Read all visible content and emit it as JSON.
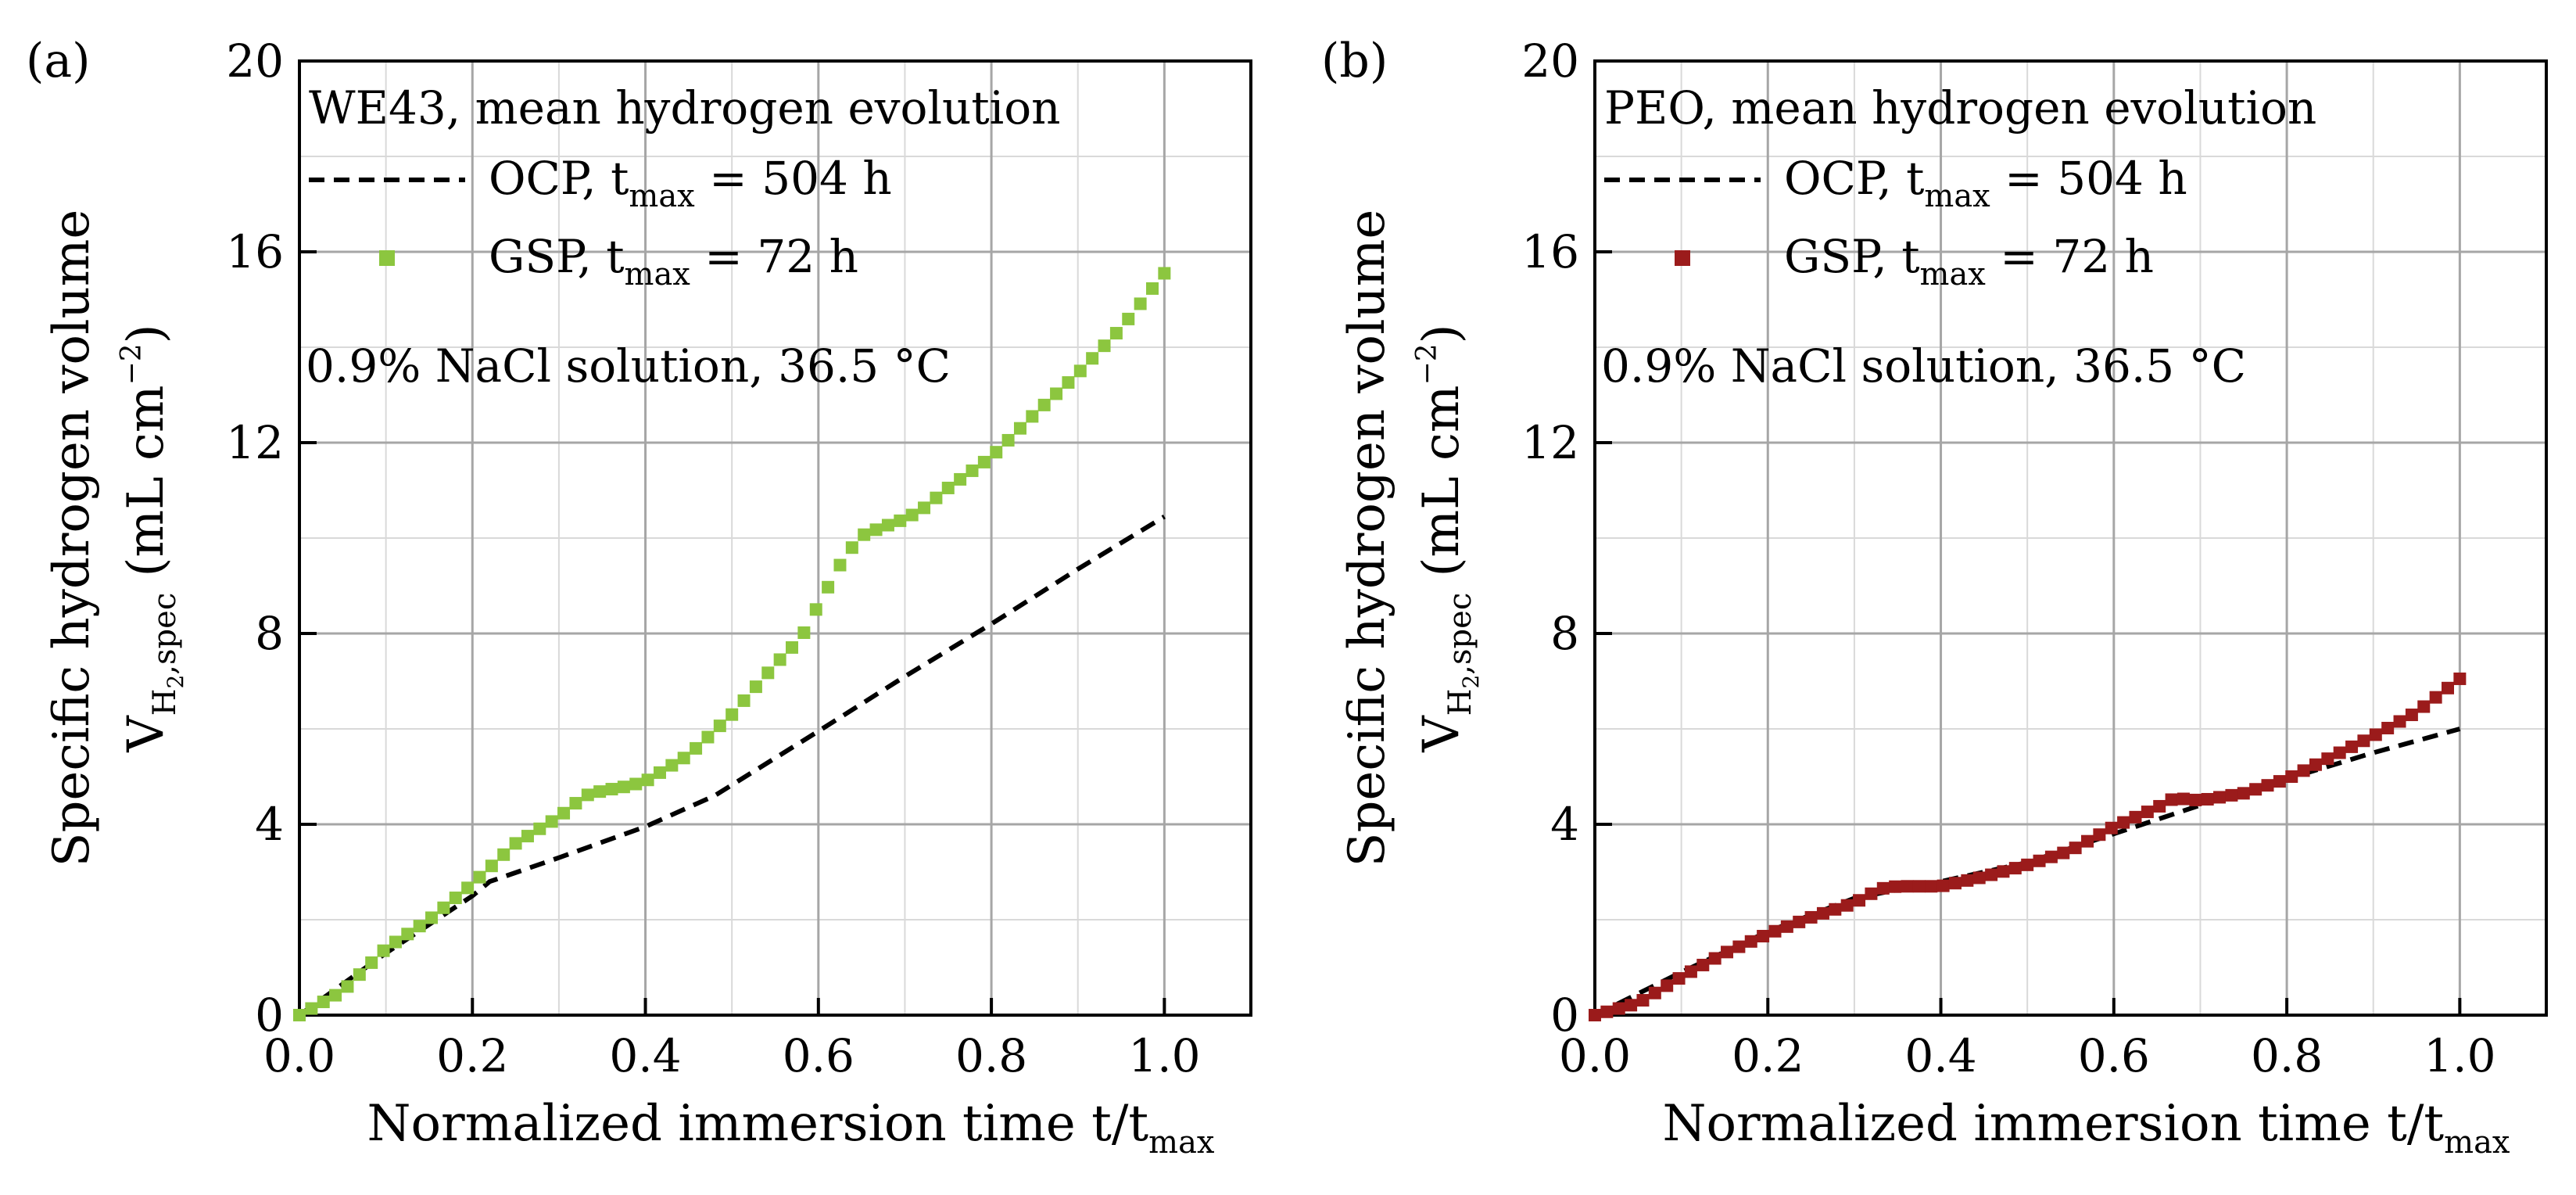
{
  "chart_data": [
    {
      "type": "line",
      "panel_label": "(a)",
      "legend_title": "WE43, mean hydrogen evolution",
      "legend": [
        {
          "name": "OCP",
          "style": "dashed-line",
          "color": "#000000",
          "label_parts": {
            "main": "OCP, t",
            "sub": "max",
            "rest": " = 504 h"
          }
        },
        {
          "name": "GSP",
          "style": "square-markers",
          "color": "#8cc63f",
          "label_parts": {
            "main": "GSP, t",
            "sub": "max",
            "rest": " = 72 h"
          }
        }
      ],
      "note": "0.9% NaCl solution, 36.5 °C",
      "xlabel": {
        "main": "Normalized immersion time t/t",
        "sub": "max"
      },
      "ylabel_outer": "Specific hydrogen volume",
      "ylabel_inner": {
        "V": "V",
        "sub": "H",
        "sub2": "2",
        "sub3": ",spec",
        "units": " (mL cm",
        "sup": "−2",
        "close": ")"
      },
      "xlim": [
        0,
        1.1
      ],
      "ylim": [
        0,
        20
      ],
      "xticks": [
        0.0,
        0.2,
        0.4,
        0.6,
        0.8,
        1.0
      ],
      "xtick_labels": [
        "0.0",
        "0.2",
        "0.4",
        "0.6",
        "0.8",
        "1.0"
      ],
      "yticks": [
        0,
        4,
        8,
        12,
        16,
        20
      ],
      "ytick_labels": [
        "0",
        "4",
        "8",
        "12",
        "16",
        "20"
      ],
      "grid": true,
      "series": [
        {
          "name": "OCP",
          "x": [
            0,
            0.1,
            0.2,
            0.22,
            0.3,
            0.4,
            0.48,
            0.6,
            0.7,
            0.8,
            0.9,
            1.0
          ],
          "y": [
            0,
            1.3,
            2.5,
            2.8,
            3.3,
            3.95,
            4.6,
            5.95,
            7.1,
            8.2,
            9.35,
            10.45
          ]
        },
        {
          "name": "GSP",
          "x": [
            0,
            0.05,
            0.1,
            0.15,
            0.2,
            0.25,
            0.3,
            0.33,
            0.35,
            0.38,
            0.4,
            0.45,
            0.5,
            0.55,
            0.58,
            0.6,
            0.63,
            0.65,
            0.67,
            0.7,
            0.72,
            0.75,
            0.8,
            0.85,
            0.9,
            0.95,
            1.0
          ],
          "y": [
            0,
            0.5,
            1.4,
            2.0,
            2.75,
            3.6,
            4.15,
            4.6,
            4.7,
            4.8,
            4.9,
            5.45,
            6.3,
            7.35,
            7.9,
            8.6,
            9.6,
            10.05,
            10.2,
            10.4,
            10.6,
            11.05,
            11.7,
            12.6,
            13.45,
            14.4,
            15.55
          ]
        }
      ]
    },
    {
      "type": "line",
      "panel_label": "(b)",
      "legend_title": "PEO, mean hydrogen evolution",
      "legend": [
        {
          "name": "OCP",
          "style": "dashed-line",
          "color": "#000000",
          "label_parts": {
            "main": "OCP, t",
            "sub": "max",
            "rest": " = 504 h"
          }
        },
        {
          "name": "GSP",
          "style": "square-markers",
          "color": "#9b1b1b",
          "label_parts": {
            "main": "GSP, t",
            "sub": "max",
            "rest": " = 72 h"
          }
        }
      ],
      "note": "0.9% NaCl solution, 36.5 °C",
      "xlabel": {
        "main": "Normalized immersion time t/t",
        "sub": "max"
      },
      "ylabel_outer": "Specific hydrogen volume",
      "ylabel_inner": {
        "V": "V",
        "sub": "H",
        "sub2": "2",
        "sub3": ",spec",
        "units": " (mL cm",
        "sup": "−2",
        "close": ")"
      },
      "xlim": [
        0,
        1.1
      ],
      "ylim": [
        0,
        20
      ],
      "xticks": [
        0.0,
        0.2,
        0.4,
        0.6,
        0.8,
        1.0
      ],
      "xtick_labels": [
        "0.0",
        "0.2",
        "0.4",
        "0.6",
        "0.8",
        "1.0"
      ],
      "yticks": [
        0,
        4,
        8,
        12,
        16,
        20
      ],
      "ytick_labels": [
        "0",
        "4",
        "8",
        "12",
        "16",
        "20"
      ],
      "grid": true,
      "series": [
        {
          "name": "OCP",
          "x": [
            0,
            0.1,
            0.2,
            0.3,
            0.4,
            0.5,
            0.6,
            0.7,
            0.8,
            0.9,
            1.0
          ],
          "y": [
            0,
            0.9,
            1.75,
            2.45,
            2.8,
            3.2,
            3.8,
            4.4,
            4.95,
            5.5,
            6.0
          ]
        },
        {
          "name": "GSP",
          "x": [
            0,
            0.05,
            0.1,
            0.15,
            0.2,
            0.25,
            0.3,
            0.33,
            0.35,
            0.4,
            0.45,
            0.5,
            0.55,
            0.6,
            0.65,
            0.67,
            0.7,
            0.75,
            0.8,
            0.85,
            0.9,
            0.95,
            1.0
          ],
          "y": [
            0,
            0.25,
            0.8,
            1.3,
            1.7,
            2.05,
            2.35,
            2.65,
            2.7,
            2.7,
            2.9,
            3.15,
            3.45,
            3.95,
            4.35,
            4.55,
            4.5,
            4.65,
            4.95,
            5.4,
            5.85,
            6.35,
            7.05
          ]
        }
      ]
    }
  ]
}
